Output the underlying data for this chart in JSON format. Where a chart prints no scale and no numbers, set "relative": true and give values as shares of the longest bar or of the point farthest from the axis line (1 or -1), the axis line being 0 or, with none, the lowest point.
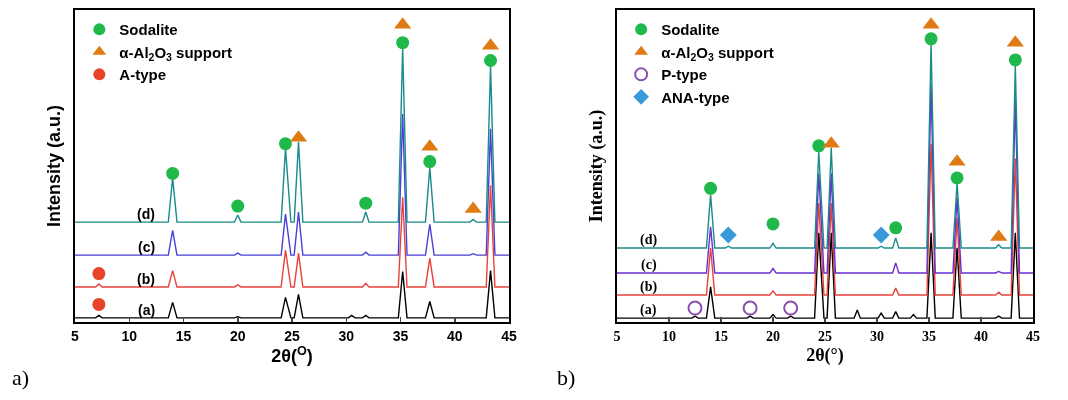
{
  "chart_data": [
    {
      "type": "line",
      "relative": true,
      "xlabel": "2θ($^{O}$)",
      "ylabel": "Intensity (a.u.)",
      "xlim": [
        5,
        45
      ],
      "xticks": [
        5,
        10,
        15,
        20,
        25,
        30,
        35,
        40,
        45
      ],
      "grid": false,
      "legend": "top left",
      "annotations": [
        "a)"
      ],
      "x": [
        5,
        6.9,
        7.2,
        7.5,
        13.6,
        14,
        14.4,
        19.7,
        20,
        20.3,
        24,
        24.4,
        24.9,
        25.2,
        25.6,
        26,
        30.2,
        30.5,
        30.8,
        31.5,
        31.8,
        32.1,
        34.8,
        35.2,
        35.6,
        37.3,
        37.7,
        38.1,
        41.4,
        41.7,
        42,
        42.9,
        43.3,
        43.7,
        45
      ],
      "series": [
        {
          "name": "(a)",
          "color": "#000000",
          "marker": "none",
          "values": [
            0.014,
            0.014,
            0.022,
            0.014,
            0.014,
            0.066,
            0.014,
            0.014,
            0.018,
            0.014,
            0.014,
            0.083,
            0.014,
            0.014,
            0.093,
            0.014,
            0.014,
            0.022,
            0.014,
            0.014,
            0.022,
            0.014,
            0.014,
            0.17,
            0.014,
            0.014,
            0.069,
            0.014,
            0.014,
            0.014,
            0.014,
            0.014,
            0.173,
            0.014,
            0.014
          ]
        },
        {
          "name": "(b)",
          "color": "#e8433a",
          "marker": "none",
          "values": [
            0.118,
            0.118,
            0.128,
            0.118,
            0.118,
            0.173,
            0.118,
            0.118,
            0.125,
            0.118,
            0.118,
            0.242,
            0.118,
            0.118,
            0.232,
            0.118,
            0.118,
            0.118,
            0.118,
            0.118,
            0.13,
            0.118,
            0.118,
            0.42,
            0.118,
            0.118,
            0.215,
            0.118,
            0.118,
            0.118,
            0.118,
            0.118,
            0.46,
            0.118,
            0.118
          ]
        },
        {
          "name": "(c)",
          "color": "#4a3fd6",
          "marker": "none",
          "values": [
            0.225,
            0.225,
            0.225,
            0.225,
            0.225,
            0.308,
            0.225,
            0.225,
            0.232,
            0.225,
            0.225,
            0.363,
            0.225,
            0.225,
            0.37,
            0.225,
            0.225,
            0.225,
            0.225,
            0.225,
            0.235,
            0.225,
            0.225,
            0.7,
            0.225,
            0.225,
            0.329,
            0.225,
            0.225,
            0.23,
            0.225,
            0.225,
            0.65,
            0.225,
            0.225
          ]
        },
        {
          "name": "(d)",
          "color": "#1a8a8a",
          "marker": "none",
          "values": [
            0.336,
            0.336,
            0.336,
            0.336,
            0.336,
            0.484,
            0.336,
            0.336,
            0.36,
            0.336,
            0.336,
            0.585,
            0.336,
            0.336,
            0.606,
            0.336,
            0.336,
            0.336,
            0.336,
            0.336,
            0.37,
            0.336,
            0.336,
            0.924,
            0.336,
            0.336,
            0.519,
            0.336,
            0.336,
            0.345,
            0.336,
            0.336,
            0.862,
            0.336,
            0.336
          ]
        },
        {
          "type": "scatter",
          "name": "Sodalite",
          "color": "#1fb84a",
          "marker": "circle",
          "x": [
            14,
            20,
            24.4,
            31.8,
            35.2,
            37.7,
            43.3
          ],
          "values": [
            0.5,
            0.39,
            0.6,
            0.4,
            0.94,
            0.54,
            0.88
          ]
        },
        {
          "type": "scatter",
          "name": "α-Al$_{2}$O$_{3}$ support",
          "color": "#e07b14",
          "marker": "triangle",
          "x": [
            25.6,
            35.2,
            37.7,
            41.7,
            43.3
          ],
          "values": [
            0.62,
            1.0,
            0.59,
            0.38,
            0.93
          ]
        },
        {
          "type": "scatter",
          "name": "A-type",
          "color": "#e8432a",
          "marker": "circle",
          "x": [
            7.2,
            7.2
          ],
          "values": [
            0.163,
            0.059
          ]
        }
      ]
    },
    {
      "type": "line",
      "relative": true,
      "xlabel": "2θ(°)",
      "ylabel": "Intensity (a.u.)",
      "xlim": [
        5,
        45
      ],
      "xticks": [
        5,
        10,
        15,
        20,
        25,
        30,
        35,
        40,
        45
      ],
      "grid": false,
      "legend": "top left",
      "annotations": [
        "b)"
      ],
      "x": [
        5,
        12.2,
        12.5,
        12.8,
        13.6,
        14,
        14.4,
        15.4,
        15.7,
        16,
        17.5,
        17.8,
        18.1,
        19.7,
        20,
        20.3,
        21.4,
        21.7,
        22,
        24,
        24.4,
        24.9,
        25.2,
        25.6,
        26,
        27.8,
        28.1,
        28.4,
        30.1,
        30.4,
        30.7,
        31.5,
        31.8,
        32.1,
        33.2,
        33.5,
        33.8,
        34.8,
        35.2,
        35.6,
        37.3,
        37.7,
        38.1,
        41.4,
        41.7,
        42,
        42.9,
        43.3,
        43.7,
        45
      ],
      "series": [
        {
          "name": "(a)",
          "color": "#000000",
          "marker": "none",
          "values": [
            0.013,
            0.013,
            0.02,
            0.013,
            0.013,
            0.118,
            0.013,
            0.013,
            0.013,
            0.013,
            0.013,
            0.02,
            0.013,
            0.013,
            0.025,
            0.013,
            0.013,
            0.02,
            0.013,
            0.013,
            0.3,
            0.013,
            0.013,
            0.3,
            0.013,
            0.013,
            0.04,
            0.013,
            0.013,
            0.03,
            0.013,
            0.013,
            0.035,
            0.013,
            0.013,
            0.025,
            0.013,
            0.013,
            0.3,
            0.013,
            0.013,
            0.25,
            0.013,
            0.013,
            0.02,
            0.013,
            0.013,
            0.3,
            0.013,
            0.013
          ]
        },
        {
          "name": "(b)",
          "color": "#e8433a",
          "marker": "none",
          "values": [
            0.091,
            0.091,
            0.091,
            0.091,
            0.091,
            0.249,
            0.091,
            0.091,
            0.091,
            0.091,
            0.091,
            0.091,
            0.091,
            0.091,
            0.105,
            0.091,
            0.091,
            0.091,
            0.091,
            0.091,
            0.4,
            0.091,
            0.091,
            0.4,
            0.091,
            0.091,
            0.091,
            0.091,
            0.091,
            0.091,
            0.091,
            0.091,
            0.114,
            0.091,
            0.091,
            0.091,
            0.091,
            0.091,
            0.6,
            0.091,
            0.091,
            0.35,
            0.091,
            0.091,
            0.1,
            0.091,
            0.091,
            0.55,
            0.091,
            0.091
          ]
        },
        {
          "name": "(c)",
          "color": "#6a2fd0",
          "marker": "none",
          "values": [
            0.165,
            0.165,
            0.165,
            0.165,
            0.165,
            0.32,
            0.165,
            0.165,
            0.165,
            0.165,
            0.165,
            0.165,
            0.165,
            0.165,
            0.18,
            0.165,
            0.165,
            0.165,
            0.165,
            0.165,
            0.5,
            0.165,
            0.165,
            0.5,
            0.165,
            0.165,
            0.165,
            0.165,
            0.165,
            0.165,
            0.165,
            0.165,
            0.199,
            0.165,
            0.165,
            0.165,
            0.165,
            0.165,
            0.8,
            0.165,
            0.165,
            0.42,
            0.165,
            0.165,
            0.17,
            0.165,
            0.165,
            0.75,
            0.165,
            0.165
          ]
        },
        {
          "name": "(d)",
          "color": "#1a8a8a",
          "marker": "none",
          "values": [
            0.249,
            0.249,
            0.249,
            0.249,
            0.249,
            0.428,
            0.249,
            0.249,
            0.255,
            0.249,
            0.249,
            0.249,
            0.249,
            0.249,
            0.265,
            0.249,
            0.249,
            0.249,
            0.249,
            0.249,
            0.572,
            0.249,
            0.249,
            0.586,
            0.249,
            0.249,
            0.249,
            0.249,
            0.249,
            0.255,
            0.249,
            0.249,
            0.283,
            0.249,
            0.249,
            0.249,
            0.249,
            0.249,
            0.94,
            0.249,
            0.249,
            0.468,
            0.249,
            0.249,
            0.26,
            0.249,
            0.249,
            0.865,
            0.249,
            0.249
          ]
        },
        {
          "type": "scatter",
          "name": "Sodalite",
          "color": "#1fb84a",
          "marker": "circle",
          "x": [
            14,
            20,
            24.4,
            31.8,
            35.2,
            37.7,
            43.3
          ],
          "values": [
            0.45,
            0.33,
            0.593,
            0.317,
            0.953,
            0.485,
            0.882
          ]
        },
        {
          "type": "scatter",
          "name": "α-Al$_{2}$O$_{3}$ support",
          "color": "#e07b14",
          "marker": "triangle",
          "x": [
            25.6,
            35.2,
            37.7,
            41.7,
            43.3
          ],
          "values": [
            0.6,
            1.0,
            0.539,
            0.286,
            0.94
          ]
        },
        {
          "type": "scatter",
          "name": "P-type",
          "color": "#8a4fb0",
          "marker": "circle-open",
          "x": [
            12.5,
            17.8,
            21.7
          ],
          "values": [
            0.047,
            0.047,
            0.047
          ]
        },
        {
          "type": "scatter",
          "name": "ANA-type",
          "color": "#3a9ad9",
          "marker": "diamond",
          "x": [
            15.7,
            30.4
          ],
          "values": [
            0.293,
            0.293
          ]
        }
      ]
    }
  ]
}
